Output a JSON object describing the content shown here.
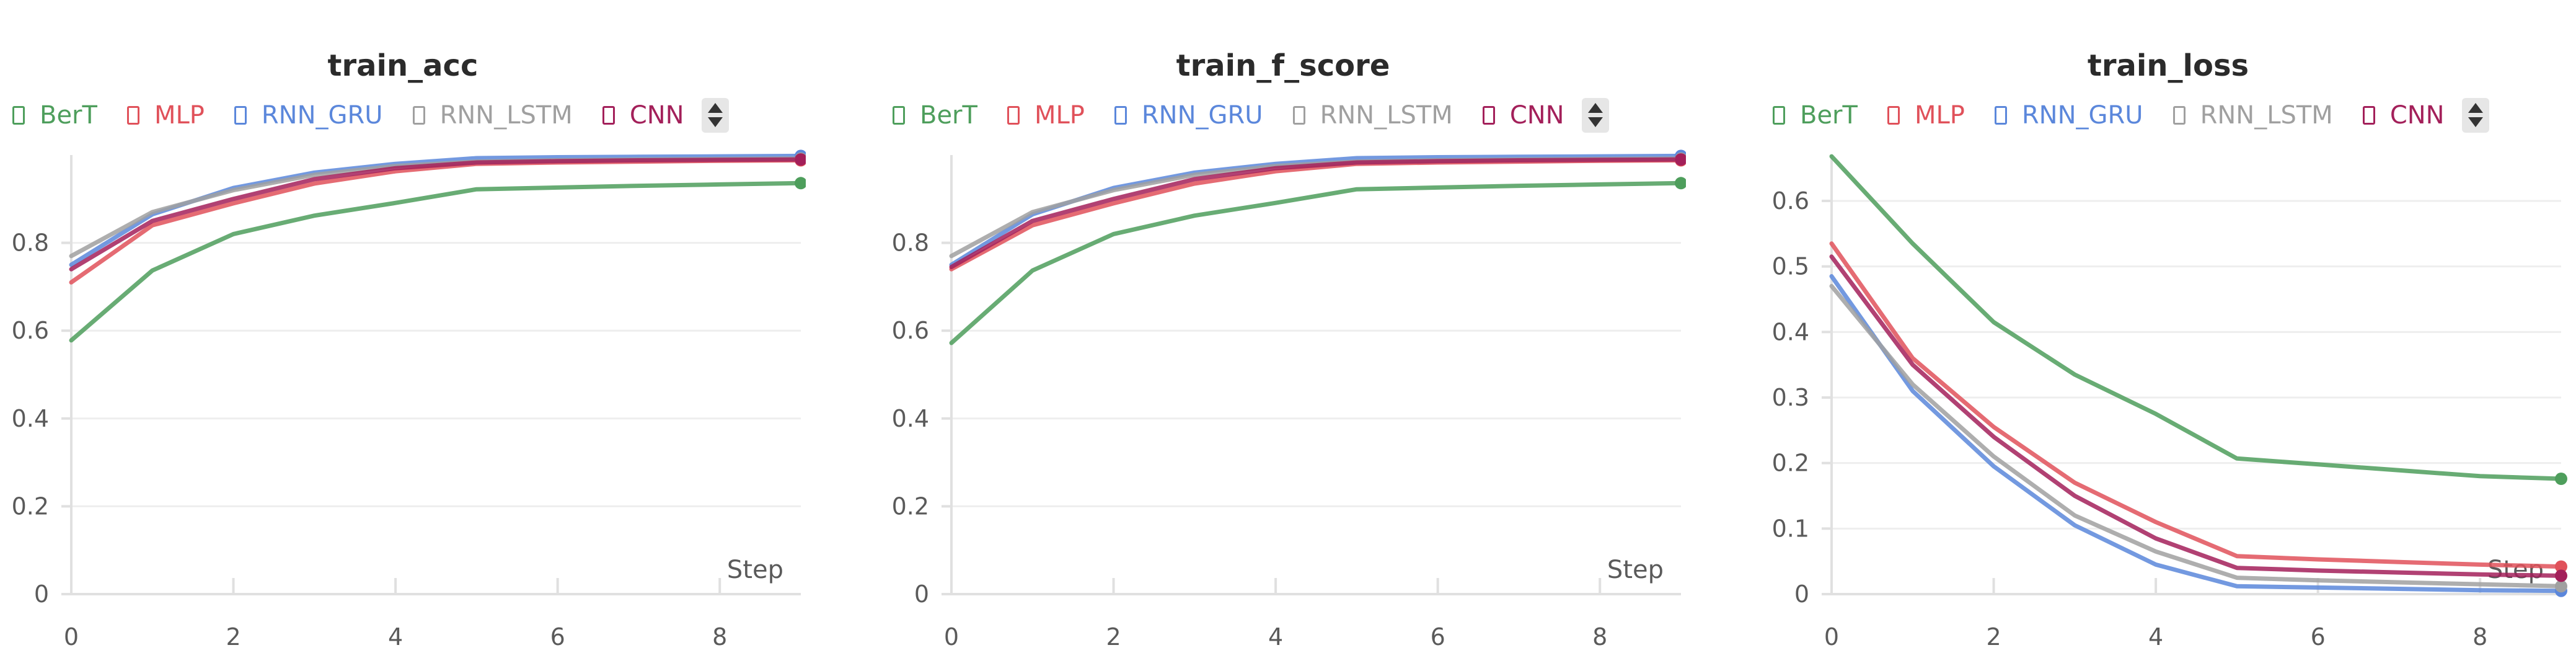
{
  "chart_data": [
    {
      "type": "line",
      "title": "train_acc",
      "xlabel": "Step",
      "ylabel": "",
      "xlim": [
        0,
        9
      ],
      "ylim": [
        0,
        1
      ],
      "xticks": [
        "0",
        "2",
        "4",
        "6",
        "8"
      ],
      "yticks": [
        "0",
        "0.2",
        "0.4",
        "0.6",
        "0.8"
      ],
      "grid": true,
      "legend": "top-left",
      "x": [
        0,
        1,
        2,
        3,
        4,
        5,
        6,
        7,
        8,
        9
      ],
      "series": [
        {
          "name": "BerT",
          "color": "#4e9e5c",
          "values": [
            0.578,
            0.737,
            0.82,
            0.862,
            0.891,
            0.922,
            0.926,
            0.93,
            0.933,
            0.936
          ]
        },
        {
          "name": "MLP",
          "color": "#e0515a",
          "values": [
            0.71,
            0.84,
            0.89,
            0.935,
            0.963,
            0.98,
            0.983,
            0.985,
            0.987,
            0.988
          ]
        },
        {
          "name": "RNN_GRU",
          "color": "#5b87db",
          "values": [
            0.75,
            0.865,
            0.925,
            0.96,
            0.98,
            0.993,
            0.995,
            0.996,
            0.997,
            0.998
          ]
        },
        {
          "name": "RNN_LSTM",
          "color": "#a0a0a0",
          "values": [
            0.77,
            0.87,
            0.92,
            0.955,
            0.975,
            0.985,
            0.988,
            0.99,
            0.991,
            0.992
          ]
        },
        {
          "name": "CNN",
          "color": "#a3205a",
          "values": [
            0.74,
            0.85,
            0.9,
            0.945,
            0.97,
            0.983,
            0.986,
            0.988,
            0.989,
            0.99
          ]
        }
      ]
    },
    {
      "type": "line",
      "title": "train_f_score",
      "xlabel": "Step",
      "ylabel": "",
      "xlim": [
        0,
        9
      ],
      "ylim": [
        0,
        1
      ],
      "xticks": [
        "0",
        "2",
        "4",
        "6",
        "8"
      ],
      "yticks": [
        "0",
        "0.2",
        "0.4",
        "0.6",
        "0.8"
      ],
      "grid": true,
      "legend": "top-left",
      "x": [
        0,
        1,
        2,
        3,
        4,
        5,
        6,
        7,
        8,
        9
      ],
      "series": [
        {
          "name": "BerT",
          "color": "#4e9e5c",
          "values": [
            0.572,
            0.737,
            0.82,
            0.862,
            0.891,
            0.922,
            0.926,
            0.93,
            0.933,
            0.936
          ]
        },
        {
          "name": "MLP",
          "color": "#e0515a",
          "values": [
            0.74,
            0.84,
            0.89,
            0.935,
            0.963,
            0.98,
            0.983,
            0.985,
            0.987,
            0.988
          ]
        },
        {
          "name": "RNN_GRU",
          "color": "#5b87db",
          "values": [
            0.75,
            0.865,
            0.925,
            0.96,
            0.98,
            0.993,
            0.995,
            0.996,
            0.997,
            0.998
          ]
        },
        {
          "name": "RNN_LSTM",
          "color": "#a0a0a0",
          "values": [
            0.77,
            0.87,
            0.92,
            0.955,
            0.975,
            0.985,
            0.988,
            0.99,
            0.991,
            0.992
          ]
        },
        {
          "name": "CNN",
          "color": "#a3205a",
          "values": [
            0.745,
            0.85,
            0.9,
            0.945,
            0.97,
            0.983,
            0.986,
            0.988,
            0.989,
            0.99
          ]
        }
      ]
    },
    {
      "type": "line",
      "title": "train_loss",
      "xlabel": "Step",
      "ylabel": "",
      "xlim": [
        0,
        9
      ],
      "ylim": [
        0,
        0.67
      ],
      "xticks": [
        "0",
        "2",
        "4",
        "6",
        "8"
      ],
      "yticks": [
        "0",
        "0.1",
        "0.2",
        "0.3",
        "0.4",
        "0.5",
        "0.6"
      ],
      "grid": true,
      "legend": "top-left",
      "x": [
        0,
        1,
        2,
        3,
        4,
        5,
        6,
        7,
        8,
        9
      ],
      "series": [
        {
          "name": "BerT",
          "color": "#4e9e5c",
          "values": [
            0.668,
            0.535,
            0.415,
            0.335,
            0.275,
            0.207,
            0.198,
            0.189,
            0.18,
            0.176
          ]
        },
        {
          "name": "MLP",
          "color": "#e0515a",
          "values": [
            0.535,
            0.36,
            0.255,
            0.17,
            0.11,
            0.058,
            0.053,
            0.049,
            0.045,
            0.042
          ]
        },
        {
          "name": "RNN_GRU",
          "color": "#5b87db",
          "values": [
            0.485,
            0.31,
            0.195,
            0.105,
            0.045,
            0.012,
            0.01,
            0.008,
            0.006,
            0.005
          ]
        },
        {
          "name": "RNN_LSTM",
          "color": "#a0a0a0",
          "values": [
            0.47,
            0.32,
            0.21,
            0.12,
            0.065,
            0.025,
            0.021,
            0.018,
            0.015,
            0.012
          ]
        },
        {
          "name": "CNN",
          "color": "#a3205a",
          "values": [
            0.515,
            0.35,
            0.24,
            0.15,
            0.085,
            0.04,
            0.036,
            0.033,
            0.03,
            0.028
          ]
        }
      ]
    }
  ]
}
